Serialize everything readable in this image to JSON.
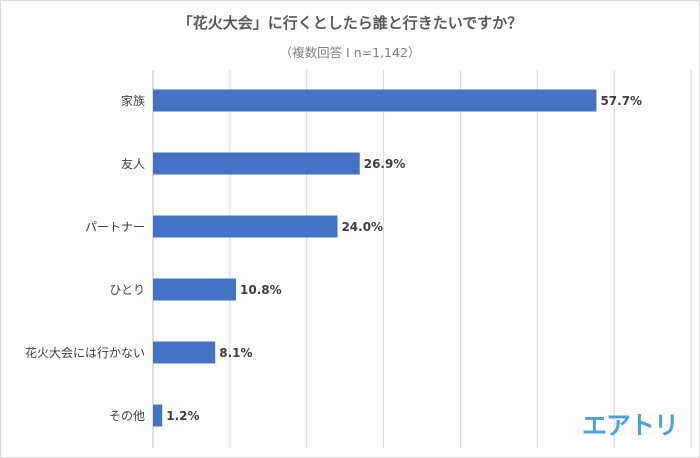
{
  "chart_data": {
    "type": "bar",
    "orientation": "horizontal",
    "title": "「花火大会」に行くとしたら誰と行きたいですか？",
    "subtitle": "（複数回答 I n=1,142）",
    "categories": [
      "家族",
      "友人",
      "パートナー",
      "ひとり",
      "花火大会には行かない",
      "その他"
    ],
    "values": [
      57.7,
      26.9,
      24.0,
      10.8,
      8.1,
      1.2
    ],
    "data_labels": [
      "57.7%",
      "26.9%",
      "24.0%",
      "10.8%",
      "8.1%",
      "1.2%"
    ],
    "xlabel": "",
    "ylabel": "",
    "xlim": [
      0,
      70
    ],
    "grid": true,
    "bar_color": "#4472c4"
  },
  "logo": "エアトリ"
}
